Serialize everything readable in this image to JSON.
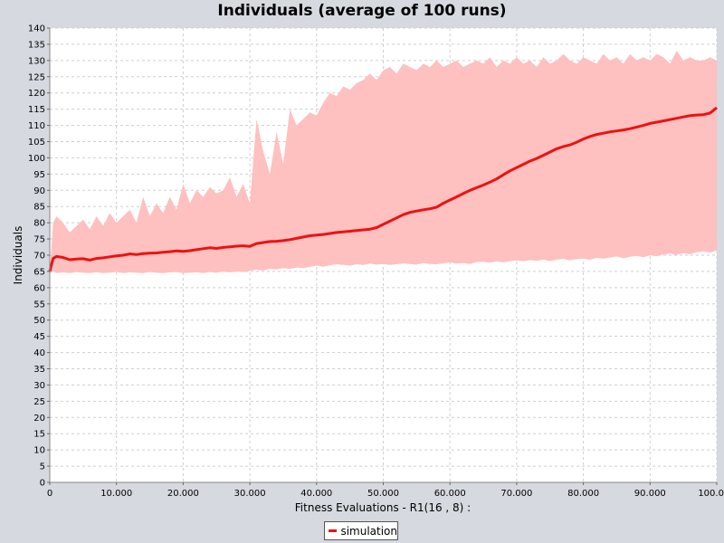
{
  "chart_data": {
    "type": "line",
    "title": "Individuals (average of 100 runs)",
    "xlabel": "Fitness Evaluations - R1(16 , 8) :",
    "ylabel": "Individuals",
    "xlim": [
      0,
      100000
    ],
    "ylim": [
      0,
      140
    ],
    "xticks": [
      0,
      10000,
      20000,
      30000,
      40000,
      50000,
      60000,
      70000,
      80000,
      90000,
      100000
    ],
    "xtick_labels": [
      "0",
      "10.000",
      "20.000",
      "30.000",
      "40.000",
      "50.000",
      "60.000",
      "70.000",
      "80.000",
      "90.000",
      "100.000"
    ],
    "ytick_step": 5,
    "grid": true,
    "legend_position": "bottom-center",
    "series": [
      {
        "name": "simulation",
        "color": "#ee1111",
        "x": [
          0,
          500,
          1000,
          2000,
          3000,
          4000,
          5000,
          6000,
          7000,
          8000,
          9000,
          10000,
          11000,
          12000,
          13000,
          14000,
          15000,
          16000,
          17000,
          18000,
          19000,
          20000,
          21000,
          22000,
          23000,
          24000,
          25000,
          26000,
          27000,
          28000,
          29000,
          30000,
          31000,
          32000,
          33000,
          34000,
          35000,
          36000,
          37000,
          38000,
          39000,
          40000,
          41000,
          42000,
          43000,
          44000,
          45000,
          46000,
          47000,
          48000,
          49000,
          50000,
          51000,
          52000,
          53000,
          54000,
          55000,
          56000,
          57000,
          58000,
          59000,
          60000,
          61000,
          62000,
          63000,
          64000,
          65000,
          66000,
          67000,
          68000,
          69000,
          70000,
          71000,
          72000,
          73000,
          74000,
          75000,
          76000,
          77000,
          78000,
          79000,
          80000,
          81000,
          82000,
          83000,
          84000,
          85000,
          86000,
          87000,
          88000,
          89000,
          90000,
          91000,
          92000,
          93000,
          94000,
          95000,
          96000,
          97000,
          98000,
          99000,
          100000
        ],
        "y": [
          65,
          69,
          69.6,
          69.3,
          68.6,
          68.8,
          68.9,
          68.5,
          69,
          69.2,
          69.5,
          69.8,
          70,
          70.4,
          70.2,
          70.5,
          70.6,
          70.7,
          70.9,
          71.1,
          71.3,
          71.2,
          71.4,
          71.7,
          72,
          72.3,
          72.1,
          72.4,
          72.6,
          72.8,
          72.9,
          72.7,
          73.6,
          73.9,
          74.2,
          74.3,
          74.5,
          74.8,
          75.2,
          75.6,
          76,
          76.2,
          76.4,
          76.7,
          77,
          77.2,
          77.4,
          77.6,
          77.8,
          78,
          78.5,
          79.5,
          80.5,
          81.5,
          82.5,
          83.2,
          83.6,
          84,
          84.3,
          84.8,
          86,
          87,
          88,
          89,
          90,
          90.8,
          91.6,
          92.5,
          93.5,
          94.8,
          96,
          97,
          98,
          99,
          99.8,
          100.8,
          101.8,
          102.8,
          103.5,
          104,
          104.8,
          105.8,
          106.6,
          107.2,
          107.6,
          108,
          108.3,
          108.6,
          109,
          109.5,
          110,
          110.6,
          111,
          111.4,
          111.8,
          112.2,
          112.6,
          113,
          113.2,
          113.3,
          113.8,
          115.5
        ],
        "band_upper": [
          65,
          80,
          82,
          80,
          77,
          79,
          81,
          78,
          82,
          79,
          83,
          80,
          82,
          84,
          80,
          88,
          82,
          86,
          83,
          88,
          84,
          92,
          86,
          90,
          88,
          91,
          89,
          90,
          94,
          88,
          92,
          86,
          112,
          102,
          95,
          108,
          98,
          115,
          110,
          112,
          114,
          113,
          117,
          120,
          119,
          122,
          121,
          123,
          124,
          126,
          124,
          127,
          128,
          126,
          129,
          128,
          127,
          129,
          128,
          130,
          128,
          129,
          130,
          128,
          129,
          130,
          129,
          131,
          128,
          130,
          129,
          131,
          129,
          130,
          128,
          131,
          129,
          130,
          132,
          130,
          129,
          131,
          130,
          129,
          132,
          130,
          131,
          129,
          132,
          130,
          131,
          130,
          132,
          131,
          129,
          133,
          130,
          131,
          130,
          130,
          131,
          130
        ],
        "band_lower": [
          64.5,
          65,
          64.5,
          64.7,
          64.5,
          64.8,
          64.6,
          64.5,
          64.7,
          64.5,
          64.6,
          64.8,
          64.5,
          64.7,
          64.6,
          64.5,
          64.8,
          64.6,
          64.5,
          64.7,
          64.8,
          64.5,
          64.6,
          64.7,
          64.5,
          64.8,
          64.6,
          64.9,
          64.7,
          65,
          64.8,
          65.2,
          65.5,
          65.3,
          65.8,
          65.6,
          66,
          65.8,
          66.2,
          66,
          66.4,
          66.8,
          66.5,
          66.9,
          67.2,
          67,
          66.8,
          67.2,
          67,
          67.4,
          67.1,
          67.3,
          67,
          67.2,
          67.5,
          67.3,
          67.1,
          67.6,
          67.3,
          67.2,
          67.5,
          67.8,
          67.4,
          67.6,
          67.3,
          67.9,
          68,
          67.7,
          68.1,
          67.8,
          68.2,
          68.4,
          68.1,
          68.5,
          68.3,
          68.7,
          68.2,
          68.6,
          68.9,
          68.4,
          68.8,
          69,
          68.6,
          69.2,
          68.9,
          69.3,
          69.6,
          69.1,
          69.5,
          69.8,
          69.4,
          70,
          69.7,
          70.2,
          70.5,
          70.1,
          70.6,
          70.3,
          70.9,
          71.2,
          70.8,
          71.5
        ]
      }
    ]
  }
}
